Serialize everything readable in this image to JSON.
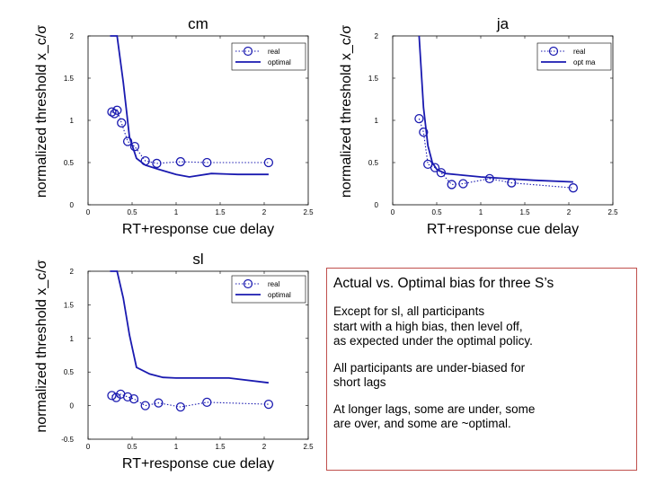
{
  "chart_data": [
    {
      "type": "line",
      "title": "cm",
      "xlabel": "RT+response cue delay",
      "ylabel": "normalized threshold x_c/σ",
      "xlim": [
        0,
        2.5
      ],
      "ylim": [
        0,
        2
      ],
      "xticks": [
        "0",
        "0.5",
        "1",
        "1.5",
        "2",
        "2.5"
      ],
      "yticks": [
        "0",
        "0.5",
        "1",
        "1.5",
        "2"
      ],
      "legend": {
        "position": "top-right",
        "entries": [
          "real",
          "optimal"
        ]
      },
      "series": [
        {
          "name": "real",
          "style": "dotted-circle",
          "x": [
            0.27,
            0.3,
            0.33,
            0.38,
            0.45,
            0.53,
            0.65,
            0.78,
            1.05,
            1.35,
            2.05
          ],
          "y": [
            1.1,
            1.08,
            1.12,
            0.97,
            0.75,
            0.69,
            0.52,
            0.49,
            0.51,
            0.5,
            0.5
          ]
        },
        {
          "name": "optimal",
          "style": "solid",
          "x": [
            0.25,
            0.33,
            0.4,
            0.47,
            0.55,
            0.65,
            0.8,
            1.0,
            1.15,
            1.4,
            1.7,
            2.05
          ],
          "y": [
            2.0,
            2.0,
            1.45,
            0.8,
            0.55,
            0.47,
            0.42,
            0.36,
            0.33,
            0.37,
            0.36,
            0.36
          ]
        }
      ]
    },
    {
      "type": "line",
      "title": "ja",
      "xlabel": "RT+response cue delay",
      "ylabel": "normalized threshold x_c/σ",
      "xlim": [
        0,
        2.5
      ],
      "ylim": [
        0,
        2
      ],
      "xticks": [
        "0",
        "0.5",
        "1",
        "1.5",
        "2",
        "2.5"
      ],
      "yticks": [
        "0",
        "0.5",
        "1",
        "1.5",
        "2"
      ],
      "legend": {
        "position": "top-right",
        "entries": [
          "real",
          "opt ma"
        ]
      },
      "series": [
        {
          "name": "real",
          "style": "dotted-circle",
          "x": [
            0.3,
            0.35,
            0.4,
            0.48,
            0.55,
            0.67,
            0.8,
            1.1,
            1.35,
            2.05
          ],
          "y": [
            1.02,
            0.86,
            0.48,
            0.44,
            0.38,
            0.24,
            0.25,
            0.31,
            0.26,
            0.2
          ]
        },
        {
          "name": "opt ma",
          "style": "solid",
          "x": [
            0.3,
            0.35,
            0.4,
            0.45,
            0.5,
            0.6,
            0.8,
            1.0,
            1.3,
            1.6,
            2.05
          ],
          "y": [
            2.0,
            1.15,
            0.7,
            0.5,
            0.42,
            0.37,
            0.35,
            0.33,
            0.31,
            0.29,
            0.27
          ]
        }
      ]
    },
    {
      "type": "line",
      "title": "sl",
      "xlabel": "RT+response cue delay",
      "ylabel": "normalized threshold x_c/σ",
      "xlim": [
        0,
        2.5
      ],
      "ylim": [
        -0.5,
        2
      ],
      "xticks": [
        "0",
        "0.5",
        "1",
        "1.5",
        "2",
        "2.5"
      ],
      "yticks": [
        "-0.5",
        "0",
        "0.5",
        "1",
        "1.5",
        "2"
      ],
      "legend": {
        "position": "top-right",
        "entries": [
          "real",
          "optimal"
        ]
      },
      "series": [
        {
          "name": "real",
          "style": "dotted-circle",
          "x": [
            0.27,
            0.32,
            0.37,
            0.45,
            0.52,
            0.65,
            0.8,
            1.05,
            1.35,
            2.05
          ],
          "y": [
            0.15,
            0.12,
            0.17,
            0.13,
            0.1,
            0.0,
            0.04,
            -0.02,
            0.05,
            0.02
          ]
        },
        {
          "name": "optimal",
          "style": "solid",
          "x": [
            0.25,
            0.33,
            0.4,
            0.47,
            0.55,
            0.7,
            0.85,
            1.0,
            1.3,
            1.6,
            2.05
          ],
          "y": [
            2.0,
            2.0,
            1.6,
            1.05,
            0.57,
            0.47,
            0.42,
            0.41,
            0.41,
            0.41,
            0.34
          ]
        }
      ]
    }
  ],
  "textbox": {
    "title": "Actual vs. Optimal bias for three S’s",
    "paragraphs": [
      "Except for sl, all participants\nstart with a high bias, then level off,\nas expected under the optimal policy.",
      "All participants are under-biased for\nshort lags",
      "At longer lags, some are under, some\nare over, and some are ~optimal."
    ]
  },
  "colors": {
    "series": "#1a1ab0",
    "axis": "#000000",
    "border": "#c0504d"
  }
}
